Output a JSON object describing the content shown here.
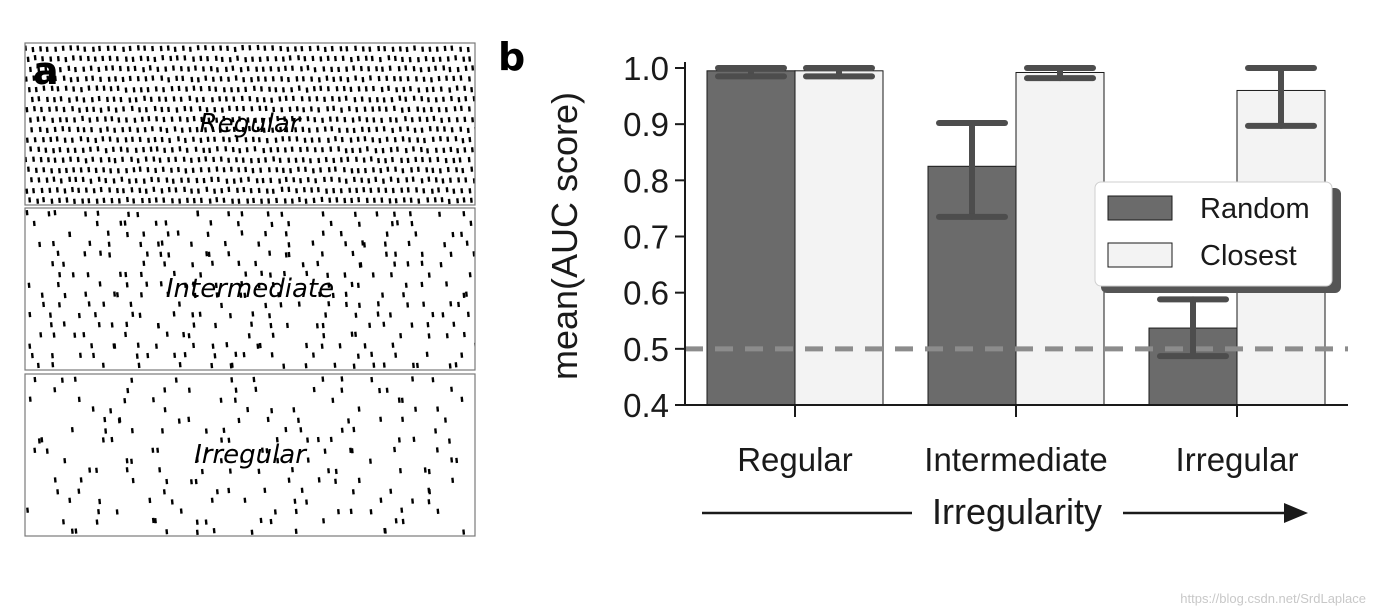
{
  "panel_a": {
    "letter": "a",
    "patterns": [
      {
        "label": "Regular",
        "spikes_per_row": 60,
        "jitter": 0.12
      },
      {
        "label": "Intermediate",
        "spikes_per_row": 22,
        "jitter": 0.6
      },
      {
        "label": "Irregular",
        "spikes_per_row": 14,
        "jitter": 1.0
      }
    ]
  },
  "panel_b": {
    "letter": "b"
  },
  "chart_data": {
    "type": "bar",
    "categories": [
      "Regular",
      "Intermediate",
      "Irregular"
    ],
    "series": [
      {
        "name": "Random",
        "values": [
          0.995,
          0.825,
          0.537
        ],
        "err_low": [
          0.985,
          0.735,
          0.487
        ],
        "err_high": [
          1.0,
          0.902,
          0.588
        ],
        "color": "#6b6b6b"
      },
      {
        "name": "Closest",
        "values": [
          0.995,
          0.992,
          0.96
        ],
        "err_low": [
          0.985,
          0.982,
          0.897
        ],
        "err_high": [
          1.0,
          1.0,
          1.0
        ],
        "color": "#f3f3f3"
      }
    ],
    "ylabel": "mean(AUC score)",
    "xlabel": "Irregularity",
    "ylim": [
      0.4,
      1.0
    ],
    "yticks": [
      "0.4",
      "0.5",
      "0.6",
      "0.7",
      "0.8",
      "0.9",
      "1.0"
    ],
    "reference_line": 0.5,
    "reference_color": "#8c8c8c",
    "errorbar_color": "#4d4d4d",
    "legend_position": "right"
  },
  "watermark": "https://blog.csdn.net/SrdLaplace"
}
